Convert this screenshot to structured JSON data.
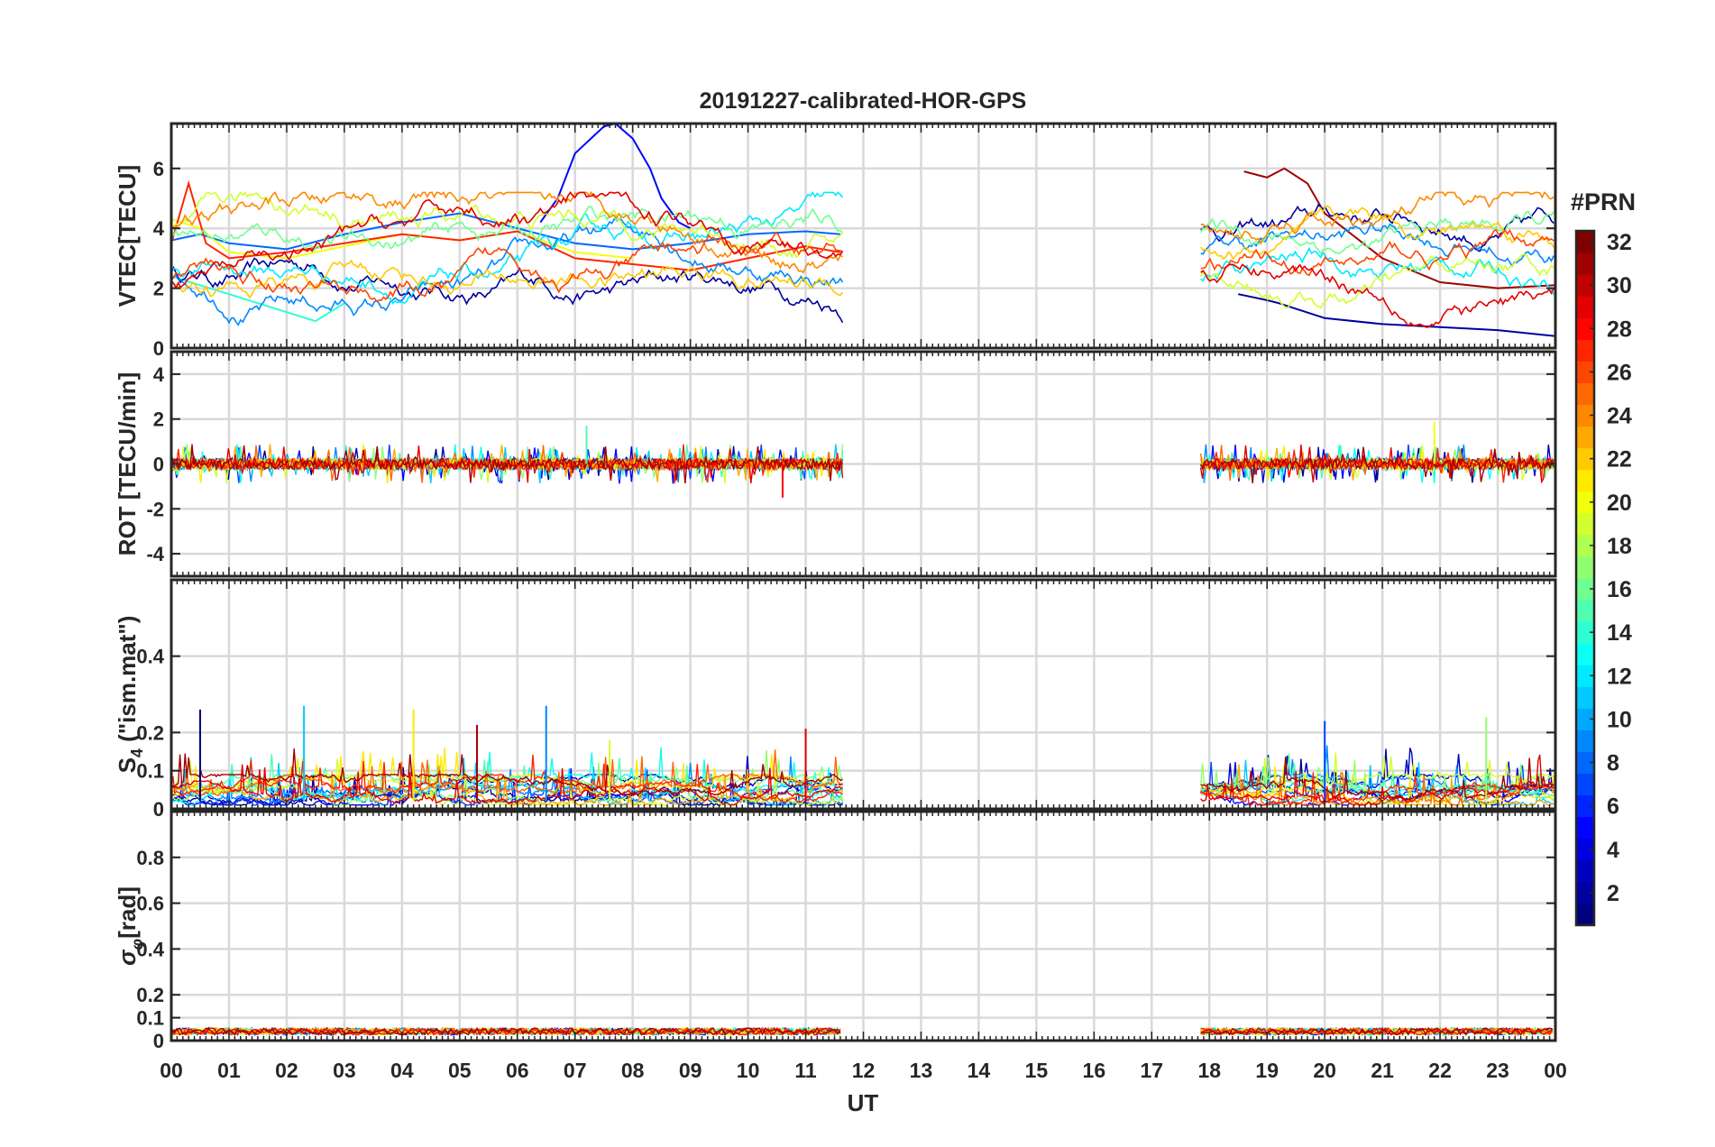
{
  "chart_data": {
    "title": "20191227-calibrated-HOR-GPS",
    "xlabel": "UT",
    "x_tick_labels": [
      "00",
      "01",
      "02",
      "03",
      "04",
      "05",
      "06",
      "07",
      "08",
      "09",
      "10",
      "11",
      "12",
      "13",
      "14",
      "15",
      "16",
      "17",
      "18",
      "19",
      "20",
      "21",
      "22",
      "23",
      "00"
    ],
    "xlim_hours": [
      0,
      24
    ],
    "grid": true,
    "colormap": "jet",
    "colorbar": {
      "label": "#PRN",
      "tick_labels": [
        "2",
        "4",
        "6",
        "8",
        "10",
        "12",
        "14",
        "16",
        "18",
        "20",
        "22",
        "24",
        "26",
        "28",
        "30",
        "32"
      ],
      "range": [
        1,
        32
      ],
      "placement": "right"
    },
    "data_coverage_hours": [
      [
        0,
        11.65
      ],
      [
        17.85,
        24
      ]
    ],
    "panels": [
      {
        "type": "line",
        "ylabel": "VTEC[TECU]",
        "ylim": [
          0,
          7.5
        ],
        "y_ticks": [
          0,
          2,
          4,
          6
        ],
        "y_tick_labels": [
          "0",
          "2",
          "4",
          "6"
        ],
        "series": [
          {
            "prn": 2,
            "x": [
              18.5,
              19.0,
              19.2,
              20.0,
              21.0,
              22.0,
              23.0,
              24.0
            ],
            "y": [
              1.8,
              1.6,
              1.5,
              1.0,
              0.8,
              0.7,
              0.6,
              0.4
            ]
          },
          {
            "prn": 5,
            "x": [
              6.4,
              6.7,
              7.0,
              7.5,
              7.7,
              8.0,
              8.3,
              8.5,
              8.8,
              9.0
            ],
            "y": [
              4.2,
              5.0,
              6.5,
              7.4,
              7.5,
              7.0,
              6.0,
              5.0,
              4.2,
              4.0
            ]
          },
          {
            "prn": 8,
            "x": [
              0.0,
              0.5,
              1.0,
              2.0,
              3.0,
              4.0,
              5.0,
              6.0,
              7.0,
              8.0,
              9.0,
              10.0,
              11.0,
              11.6
            ],
            "y": [
              3.6,
              3.8,
              3.5,
              3.3,
              3.8,
              4.2,
              4.5,
              4.0,
              3.5,
              3.3,
              3.5,
              3.8,
              3.9,
              3.8
            ]
          },
          {
            "prn": 14,
            "x": [
              0.0,
              0.5,
              1.0,
              1.5,
              2.0,
              2.5,
              3.0
            ],
            "y": [
              2.4,
              2.1,
              1.8,
              1.5,
              1.2,
              0.9,
              1.5
            ]
          },
          {
            "prn": 20,
            "x": [
              0.0,
              0.5,
              1.0,
              2.0,
              3.0,
              4.0,
              5.0,
              6.0,
              7.0,
              8.0
            ],
            "y": [
              4.3,
              4.0,
              3.2,
              3.0,
              3.4,
              3.8,
              3.6,
              3.9,
              3.2,
              3.0
            ]
          },
          {
            "prn": 27,
            "x": [
              0.0,
              0.3,
              0.6,
              1.0,
              2.0,
              3.0,
              4.0,
              5.0,
              6.0,
              7.0,
              8.0,
              9.0,
              10.0,
              11.0,
              11.6
            ],
            "y": [
              3.5,
              5.5,
              3.5,
              3.0,
              3.2,
              3.5,
              3.8,
              3.6,
              3.9,
              3.0,
              2.8,
              2.6,
              3.0,
              3.4,
              3.2
            ]
          },
          {
            "prn": 31,
            "x": [
              18.6,
              19.0,
              19.3,
              19.7,
              20.0,
              21.0,
              22.0,
              23.0,
              24.0
            ],
            "y": [
              5.9,
              5.7,
              6.0,
              5.5,
              4.5,
              3.0,
              2.2,
              2.0,
              2.1
            ]
          }
        ]
      },
      {
        "type": "line",
        "ylabel": "ROT [TECU/min]",
        "ylim": [
          -5,
          5
        ],
        "y_ticks": [
          -4,
          -2,
          0,
          2,
          4
        ],
        "y_tick_labels": [
          "-4",
          "-2",
          "0",
          "2",
          "4"
        ],
        "noise_amplitude": 0.8,
        "spike_times_hours": [
          7.2,
          10.6,
          21.9
        ],
        "spike_values": [
          1.7,
          -1.5,
          1.9
        ]
      },
      {
        "type": "line",
        "ylabel": "S4 (\"ism.mat\")",
        "ylabel_parts": [
          "S",
          "4",
          " (\"ism.mat\")"
        ],
        "ylim": [
          0,
          0.6
        ],
        "y_ticks": [
          0,
          0.1,
          0.2,
          0.4
        ],
        "y_tick_labels": [
          "0",
          "0.1",
          "0.2",
          "0.4"
        ],
        "baseline": 0.04,
        "peaks": [
          {
            "x": 0.5,
            "y": 0.26
          },
          {
            "x": 2.3,
            "y": 0.27
          },
          {
            "x": 4.2,
            "y": 0.26
          },
          {
            "x": 5.3,
            "y": 0.22
          },
          {
            "x": 6.5,
            "y": 0.27
          },
          {
            "x": 7.6,
            "y": 0.18
          },
          {
            "x": 11.0,
            "y": 0.21
          },
          {
            "x": 20.0,
            "y": 0.23
          },
          {
            "x": 22.8,
            "y": 0.24
          }
        ]
      },
      {
        "type": "line",
        "ylabel": "σφ[rad]",
        "ylabel_parts": [
          "σ",
          "φ",
          "[rad]"
        ],
        "ylim": [
          0,
          1
        ],
        "y_ticks": [
          0,
          0.1,
          0.2,
          0.4,
          0.6,
          0.8
        ],
        "y_tick_labels": [
          "0",
          "0.1",
          "0.2",
          "0.4",
          "0.6",
          "0.8"
        ],
        "baseline": 0.04
      }
    ]
  }
}
